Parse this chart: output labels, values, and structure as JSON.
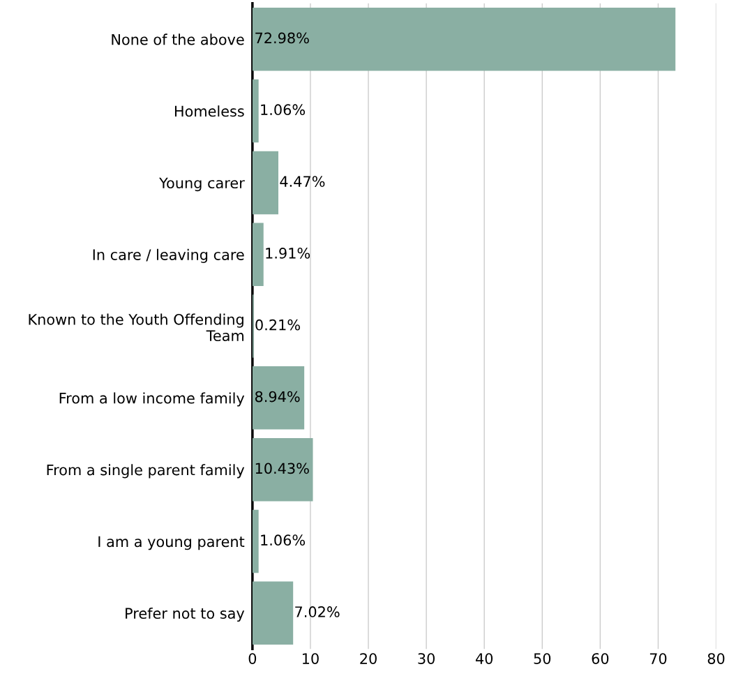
{
  "chart_data": {
    "type": "bar",
    "orientation": "horizontal",
    "categories": [
      "None of the above",
      "Homeless",
      "Young carer",
      "In care / leaving care",
      "Known to the Youth Offending\nTeam",
      "From a low income family",
      "From a single parent family",
      "I am a young parent",
      "Prefer not to say"
    ],
    "values": [
      72.98,
      1.06,
      4.47,
      1.91,
      0.21,
      8.94,
      10.43,
      1.06,
      7.02
    ],
    "value_labels": [
      "72.98%",
      "1.06%",
      "4.47%",
      "1.91%",
      "0.21%",
      "8.94%",
      "10.43%",
      "1.06%",
      "7.02%"
    ],
    "color": "#8aafa3",
    "xlim": [
      0,
      80
    ],
    "xticks": [
      0,
      10,
      20,
      30,
      40,
      50,
      60,
      70,
      80
    ],
    "grid": "x"
  }
}
